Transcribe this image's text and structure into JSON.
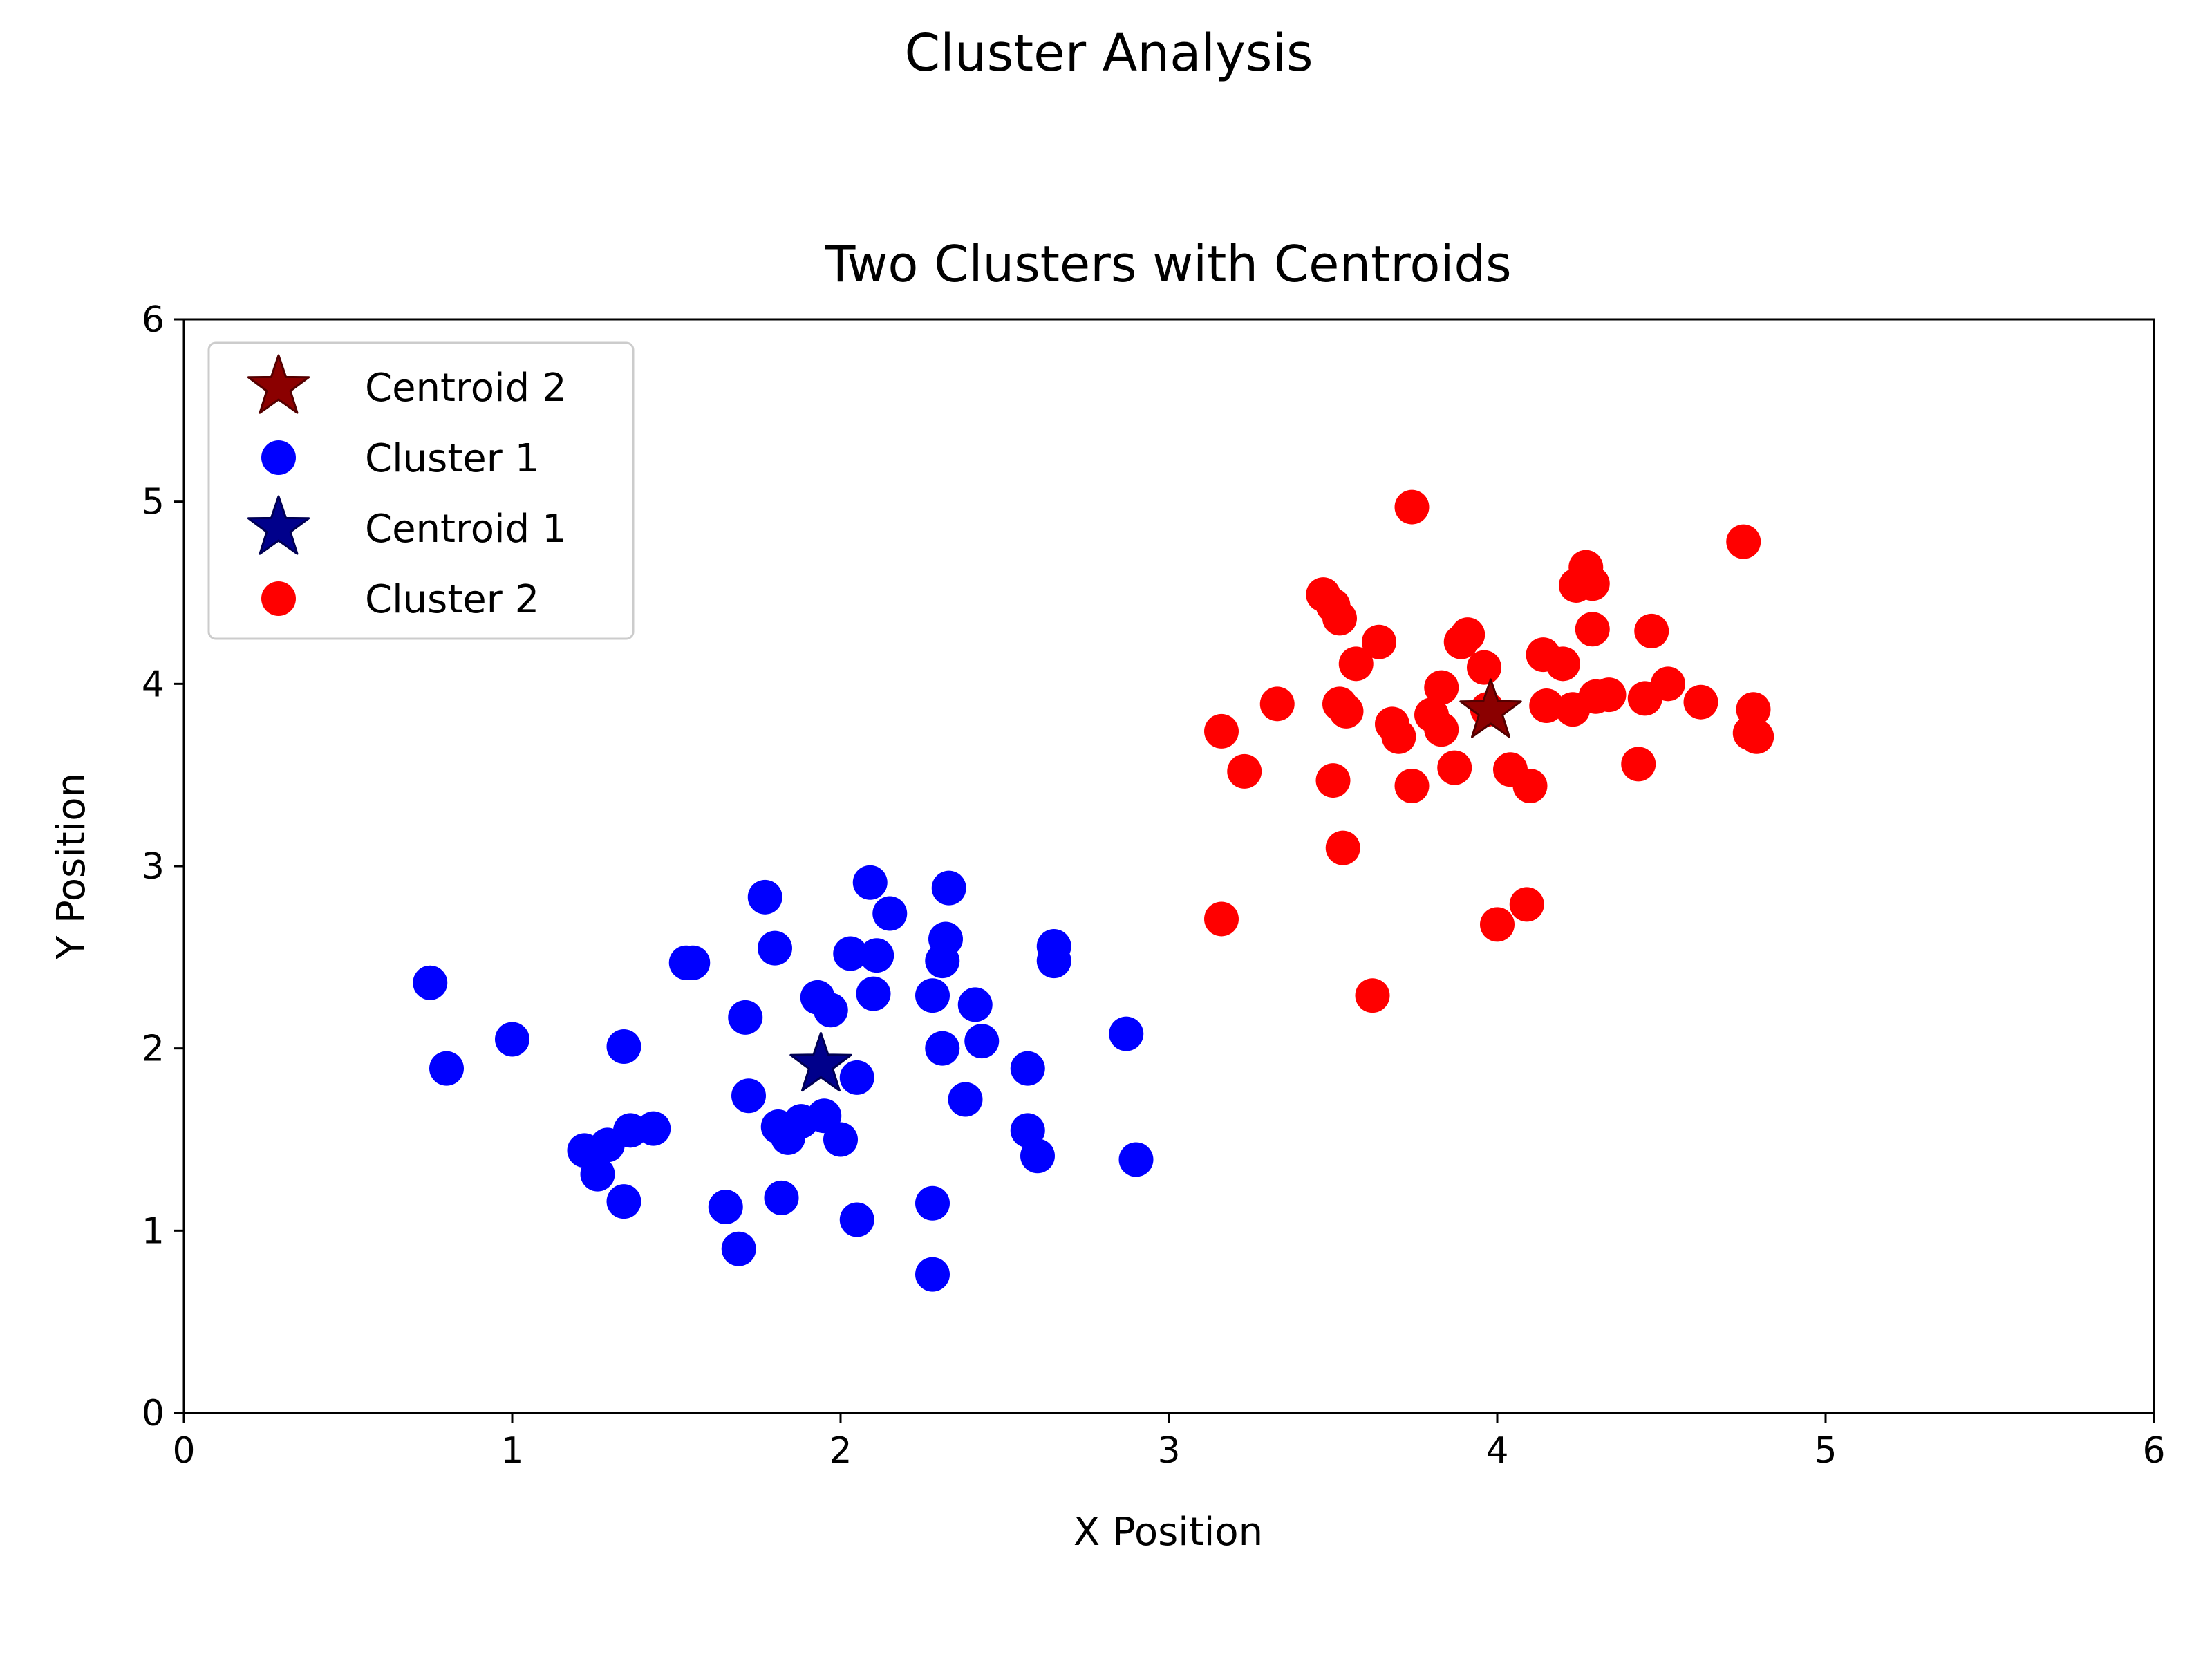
{
  "figure_title": "Cluster Analysis",
  "chart_data": {
    "type": "scatter",
    "title": "Two Clusters with Centroids",
    "xlabel": "X Position",
    "ylabel": "Y Position",
    "xlim": [
      0,
      6
    ],
    "ylim": [
      0,
      6
    ],
    "xticks": [
      "0",
      "1",
      "2",
      "3",
      "4",
      "5",
      "6"
    ],
    "yticks": [
      "0",
      "1",
      "2",
      "3",
      "4",
      "5",
      "6"
    ],
    "grid": false,
    "legend_position": "top-left",
    "legend": [
      {
        "label": "Centroid 2",
        "marker": "star",
        "color": "#8b0000"
      },
      {
        "label": "Cluster 1",
        "marker": "circle",
        "color": "#0000ff"
      },
      {
        "label": "Centroid 1",
        "marker": "star",
        "color": "#00008b"
      },
      {
        "label": "Cluster 2",
        "marker": "circle",
        "color": "#ff0000"
      }
    ],
    "series": [
      {
        "name": "Cluster 1",
        "marker": "circle",
        "color": "#0000ff",
        "points": [
          [
            0.75,
            2.36
          ],
          [
            0.8,
            1.89
          ],
          [
            1.0,
            2.05
          ],
          [
            1.22,
            1.44
          ],
          [
            1.26,
            1.31
          ],
          [
            1.29,
            1.47
          ],
          [
            1.34,
            2.01
          ],
          [
            1.34,
            1.16
          ],
          [
            1.36,
            1.55
          ],
          [
            1.43,
            1.56
          ],
          [
            1.53,
            2.47
          ],
          [
            1.55,
            2.47
          ],
          [
            1.65,
            1.13
          ],
          [
            1.69,
            0.9
          ],
          [
            1.71,
            2.17
          ],
          [
            1.72,
            1.74
          ],
          [
            1.77,
            2.83
          ],
          [
            1.8,
            2.55
          ],
          [
            1.81,
            1.57
          ],
          [
            1.82,
            1.18
          ],
          [
            1.84,
            1.51
          ],
          [
            1.88,
            1.6
          ],
          [
            1.93,
            2.28
          ],
          [
            1.95,
            1.63
          ],
          [
            1.97,
            2.21
          ],
          [
            2.0,
            1.5
          ],
          [
            2.03,
            2.52
          ],
          [
            2.05,
            1.06
          ],
          [
            2.05,
            1.84
          ],
          [
            2.09,
            2.91
          ],
          [
            2.1,
            2.3
          ],
          [
            2.11,
            2.51
          ],
          [
            2.15,
            2.74
          ],
          [
            2.28,
            1.15
          ],
          [
            2.28,
            2.29
          ],
          [
            2.28,
            0.76
          ],
          [
            2.31,
            2.0
          ],
          [
            2.31,
            2.48
          ],
          [
            2.32,
            2.6
          ],
          [
            2.33,
            2.88
          ],
          [
            2.38,
            1.72
          ],
          [
            2.41,
            2.24
          ],
          [
            2.43,
            2.04
          ],
          [
            2.57,
            1.89
          ],
          [
            2.57,
            1.55
          ],
          [
            2.6,
            1.41
          ],
          [
            2.65,
            2.56
          ],
          [
            2.65,
            2.48
          ],
          [
            2.87,
            2.08
          ],
          [
            2.9,
            1.39
          ]
        ]
      },
      {
        "name": "Cluster 2",
        "marker": "circle",
        "color": "#ff0000",
        "points": [
          [
            3.16,
            3.74
          ],
          [
            3.16,
            2.71
          ],
          [
            3.23,
            3.52
          ],
          [
            3.33,
            3.89
          ],
          [
            3.47,
            4.49
          ],
          [
            3.5,
            4.43
          ],
          [
            3.5,
            3.47
          ],
          [
            3.52,
            4.36
          ],
          [
            3.52,
            3.89
          ],
          [
            3.53,
            3.1
          ],
          [
            3.54,
            3.85
          ],
          [
            3.57,
            4.11
          ],
          [
            3.62,
            2.29
          ],
          [
            3.64,
            4.23
          ],
          [
            3.68,
            3.78
          ],
          [
            3.7,
            3.71
          ],
          [
            3.74,
            4.97
          ],
          [
            3.74,
            3.44
          ],
          [
            3.8,
            3.83
          ],
          [
            3.83,
            3.98
          ],
          [
            3.83,
            3.75
          ],
          [
            3.87,
            3.54
          ],
          [
            3.89,
            4.23
          ],
          [
            3.91,
            4.27
          ],
          [
            3.96,
            4.09
          ],
          [
            3.97,
            3.86
          ],
          [
            4.0,
            2.68
          ],
          [
            4.04,
            3.53
          ],
          [
            4.09,
            2.79
          ],
          [
            4.1,
            3.44
          ],
          [
            4.14,
            4.16
          ],
          [
            4.15,
            3.88
          ],
          [
            4.2,
            4.11
          ],
          [
            4.23,
            3.86
          ],
          [
            4.24,
            4.54
          ],
          [
            4.27,
            4.64
          ],
          [
            4.29,
            4.55
          ],
          [
            4.29,
            4.3
          ],
          [
            4.3,
            3.93
          ],
          [
            4.34,
            3.94
          ],
          [
            4.43,
            3.56
          ],
          [
            4.45,
            3.92
          ],
          [
            4.47,
            4.29
          ],
          [
            4.52,
            4.0
          ],
          [
            4.62,
            3.9
          ],
          [
            4.75,
            4.78
          ],
          [
            4.77,
            3.73
          ],
          [
            4.78,
            3.86
          ],
          [
            4.79,
            3.71
          ]
        ]
      },
      {
        "name": "Centroid 1",
        "marker": "star",
        "color": "#00008b",
        "points": [
          [
            1.94,
            1.91
          ]
        ]
      },
      {
        "name": "Centroid 2",
        "marker": "star",
        "color": "#8b0000",
        "points": [
          [
            3.98,
            3.85
          ]
        ]
      }
    ]
  }
}
